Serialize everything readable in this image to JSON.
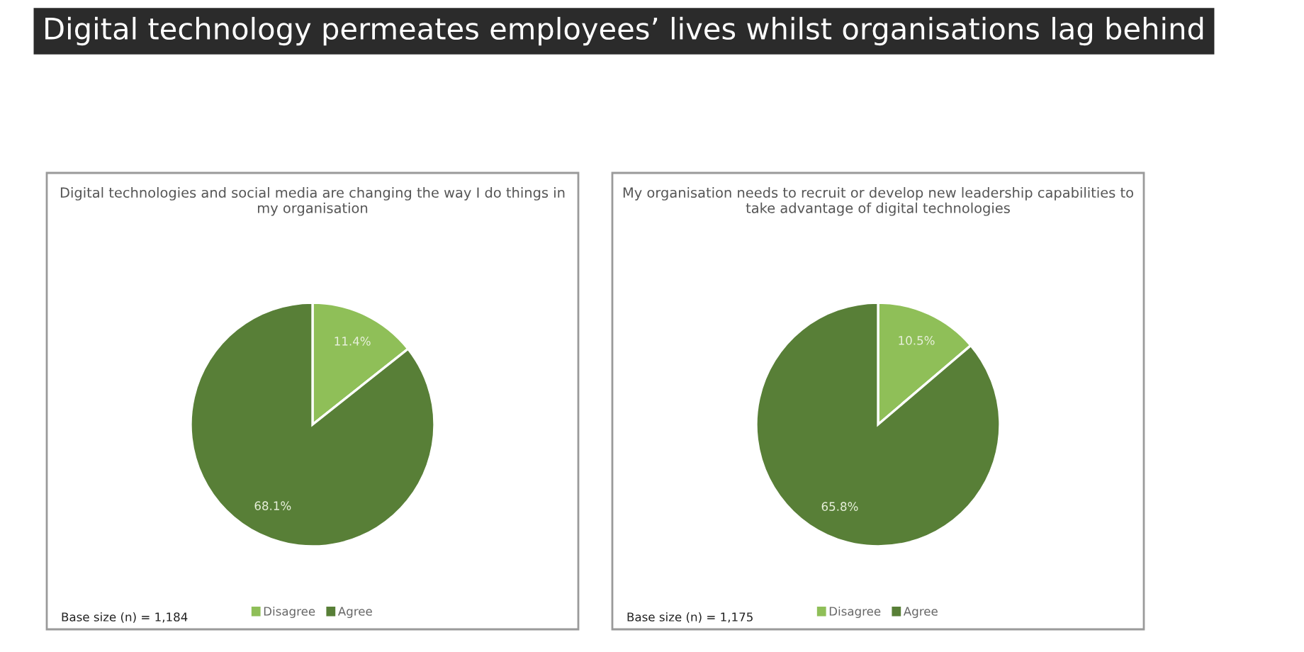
{
  "chart_data": [
    {
      "type": "pie",
      "title": "Digital technologies and social media are changing the way I do things in my organisation",
      "categories": [
        "Disagree",
        "Agree"
      ],
      "values": [
        11.4,
        68.1
      ],
      "value_labels": [
        "11.4%",
        "68.1%"
      ],
      "colors": [
        "#8fbf58",
        "#587f37"
      ],
      "legend": "bottom",
      "annotations": [
        "Digital technology permeates employees’ lives whilst organisations lag behind",
        "Base size (n) = 1,184"
      ]
    },
    {
      "type": "pie",
      "title": "My organisation needs to recruit or develop new leadership capabilities to take advantage of digital technologies",
      "categories": [
        "Disagree",
        "Agree"
      ],
      "values": [
        10.5,
        65.8
      ],
      "value_labels": [
        "10.5%",
        "65.8%"
      ],
      "colors": [
        "#8fbf58",
        "#587f37"
      ],
      "legend": "bottom",
      "annotations": [
        "Base size (n) = 1,175"
      ]
    }
  ]
}
